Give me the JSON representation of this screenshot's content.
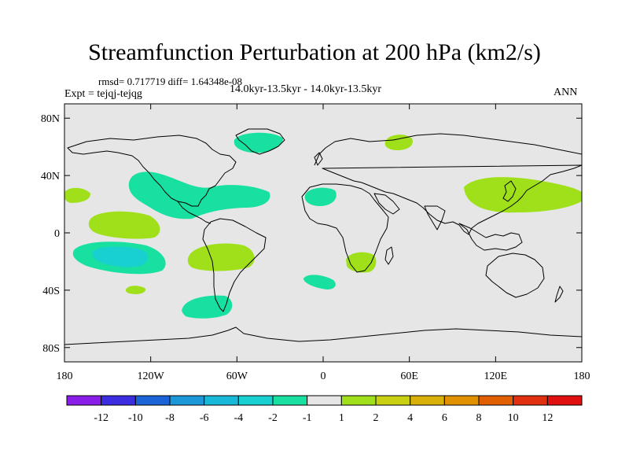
{
  "title": "Streamfunction Perturbation at 200 hPa (km2/s)",
  "stats": "rmsd= 0.717719 diff= 1.64348e-08",
  "experiment": "Expt = tejqj-tejqg",
  "period": "14.0kyr-13.5kyr - 14.0kyr-13.5kyr",
  "season": "ANN",
  "map": {
    "y_ticks": [
      {
        "label": "80N",
        "lat": 80
      },
      {
        "label": "40N",
        "lat": 40
      },
      {
        "label": "0",
        "lat": 0
      },
      {
        "label": "40S",
        "lat": -40
      },
      {
        "label": "80S",
        "lat": -80
      }
    ],
    "x_ticks": [
      {
        "label": "180",
        "lon": -180
      },
      {
        "label": "120W",
        "lon": -120
      },
      {
        "label": "60W",
        "lon": -60
      },
      {
        "label": "0",
        "lon": 0
      },
      {
        "label": "60E",
        "lon": 60
      },
      {
        "label": "120E",
        "lon": 120
      },
      {
        "label": "180",
        "lon": 180
      }
    ],
    "lat_range": [
      -90,
      90
    ],
    "lon_range": [
      -180,
      180
    ],
    "background_color": "#e6e6e6"
  },
  "colorbar": {
    "colors": [
      "#8a1ee8",
      "#3c2ee0",
      "#1a64d8",
      "#1a98d8",
      "#18b8d8",
      "#18d0d0",
      "#18e0a0",
      "#e6e6e6",
      "#a0e01a",
      "#c8d010",
      "#d8b008",
      "#e09000",
      "#e06000",
      "#e03010",
      "#e01010"
    ],
    "labels": [
      "-12",
      "-10",
      "-8",
      "-6",
      "-4",
      "-2",
      "-1",
      "1",
      "2",
      "4",
      "6",
      "8",
      "10",
      "12"
    ]
  }
}
